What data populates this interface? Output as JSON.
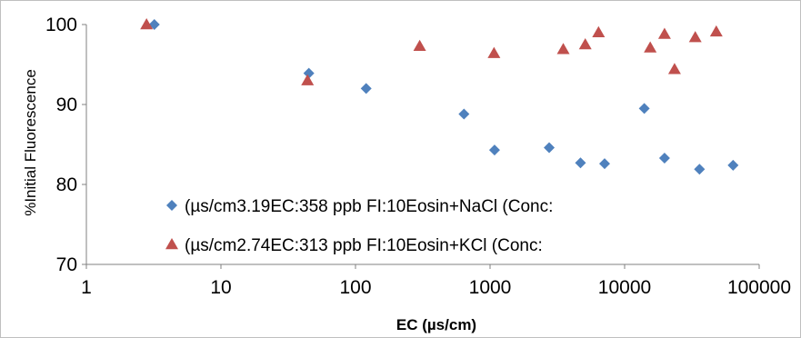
{
  "chart_data": {
    "type": "scatter",
    "title": "",
    "xlabel": "EC (µs/cm)",
    "ylabel": "%Initial Fluorescence",
    "x_scale": "log",
    "xlim": [
      1,
      100000
    ],
    "ylim": [
      70,
      100
    ],
    "x_ticks": [
      "1",
      "10",
      "100",
      "1000",
      "10000",
      "100000"
    ],
    "y_ticks": [
      "70",
      "80",
      "90",
      "100"
    ],
    "grid": false,
    "legend_position": "bottom-left inside plot",
    "series": [
      {
        "name": "(µs/cm3.19EC:358 ppb FI:10Eosin+NaCl (Conc:",
        "marker": "diamond",
        "color": "#4f81bd",
        "x": [
          3.2,
          45,
          120,
          640,
          1080,
          2750,
          4700,
          7100,
          14000,
          19800,
          36000,
          64000
        ],
        "y": [
          100,
          93.9,
          92,
          88.8,
          84.3,
          84.6,
          82.7,
          82.6,
          89.5,
          83.3,
          81.9,
          82.4
        ]
      },
      {
        "name": "(µs/cm2.74EC:313 ppb FI:10Eosin+KCl (Conc:",
        "marker": "triangle",
        "color": "#c0504d",
        "x": [
          2.8,
          44,
          300,
          1070,
          3500,
          5100,
          6400,
          15500,
          19800,
          23500,
          33500,
          48000
        ],
        "y": [
          100,
          93,
          97.3,
          96.4,
          96.9,
          97.5,
          99,
          97.1,
          98.8,
          94.4,
          98.4,
          99.1
        ]
      }
    ]
  }
}
